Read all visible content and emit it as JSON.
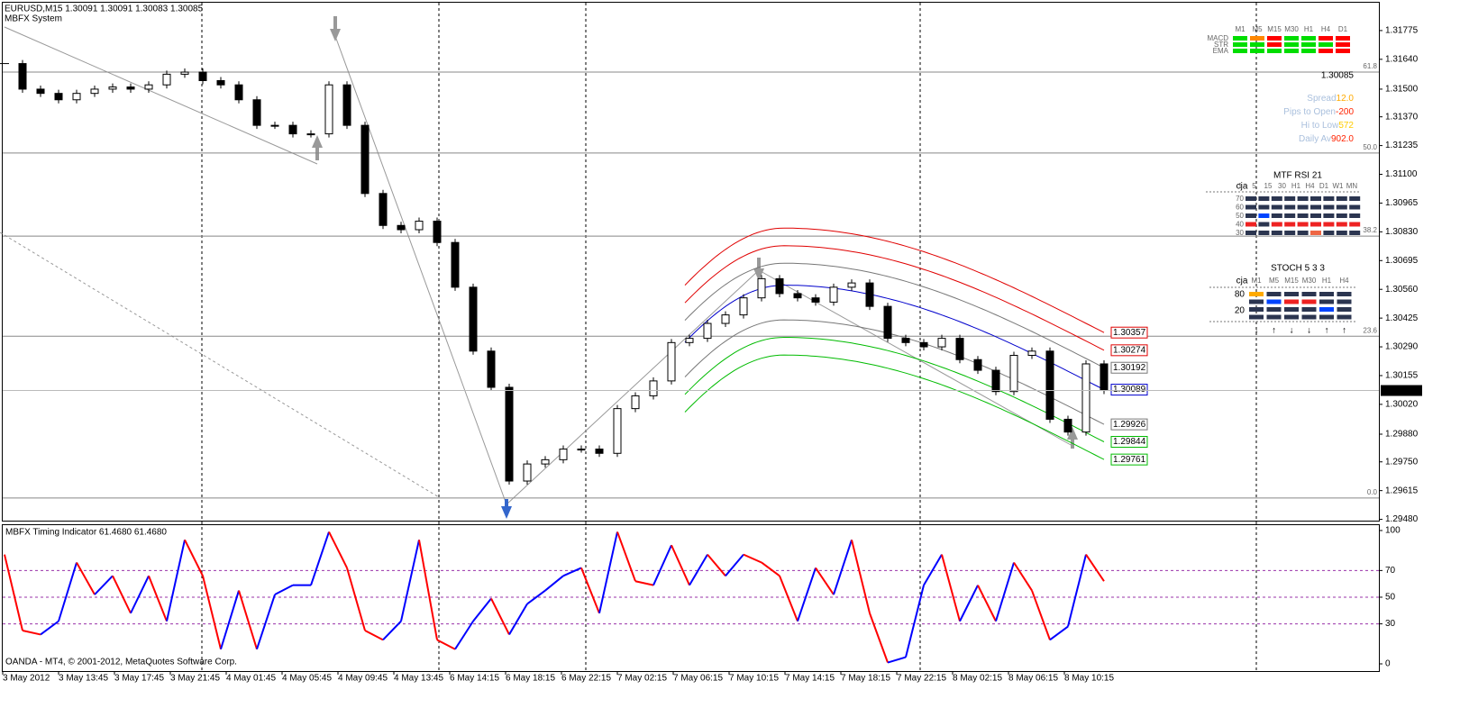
{
  "header": {
    "symbol": "EURUSD,M15  1.30091 1.30091 1.30083 1.30085",
    "system": "MBFX System",
    "copyright": "OANDA - MT4, © 2001-2012, MetaQuotes Software Corp."
  },
  "time_axis": [
    "3 May 2012",
    "3 May 13:45",
    "3 May 17:45",
    "3 May 21:45",
    "4 May 01:45",
    "4 May 05:45",
    "4 May 09:45",
    "4 May 13:45",
    "6 May 14:15",
    "6 May 18:15",
    "6 May 22:15",
    "7 May 02:15",
    "7 May 06:15",
    "7 May 10:15",
    "7 May 14:15",
    "7 May 18:15",
    "7 May 22:15",
    "8 May 02:15",
    "8 May 06:15",
    "8 May 10:15"
  ],
  "chart_data": [
    {
      "type": "candlestick",
      "close": [
        1.3162,
        1.315,
        1.3148,
        1.3145,
        1.3148,
        1.315,
        1.3151,
        1.315,
        1.3152,
        1.3157,
        1.3158,
        1.3154,
        1.3152,
        1.3145,
        1.3133,
        1.3133,
        1.3129,
        1.3129,
        1.3152,
        1.3133,
        1.3101,
        1.3086,
        1.3084,
        1.3088,
        1.3078,
        1.3057,
        1.3027,
        1.301,
        1.2966,
        1.2974,
        1.2976,
        1.2981,
        1.2981,
        1.2979,
        1.3,
        1.3006,
        1.3013,
        1.3031,
        1.3033,
        1.304,
        1.3044,
        1.3052,
        1.3061,
        1.3054,
        1.3052,
        1.305,
        1.3057,
        1.3059,
        1.3048,
        1.3033,
        1.3031,
        1.3029,
        1.3033,
        1.3023,
        1.3018,
        1.3008,
        1.3025,
        1.3027,
        1.2995,
        1.2989,
        1.3021,
        1.30085
      ],
      "up_color": "#ffffff",
      "down_color": "#000000",
      "ylim": [
        1.29474,
        1.3191
      ],
      "yticks": [
        1.31775,
        {
          "value": 1.3164,
          "label": "1.31640"
        },
        {
          "value": 1.315,
          "label": "1.31500"
        },
        {
          "value": 1.3137,
          "label": "1.31370"
        },
        1.31235,
        {
          "value": 1.311,
          "label": "1.31100"
        },
        1.30965,
        {
          "value": 1.3083,
          "label": "1.30830"
        },
        1.30695,
        {
          "value": 1.3056,
          "label": "1.30560"
        },
        1.30425,
        {
          "value": 1.3029,
          "label": "1.30290"
        },
        1.30155,
        {
          "value": 1.3002,
          "label": "1.30020"
        },
        {
          "value": 1.2988,
          "label": "1.29880"
        },
        {
          "value": 1.2975,
          "label": "1.29750"
        },
        1.29615,
        {
          "value": 1.2948,
          "label": "1.29480"
        }
      ],
      "last_price": 1.30085,
      "levels": [
        {
          "value": 1.3158,
          "label": "61.8"
        },
        {
          "value": 1.312,
          "label": "50.0"
        },
        {
          "value": 1.3081,
          "label": "38.2"
        },
        {
          "value": 1.3034,
          "label": "23.6"
        },
        {
          "value": 1.2958,
          "label": "0.0"
        }
      ],
      "bands": [
        1.30357,
        1.30274,
        1.30192,
        1.30089,
        1.29926,
        1.29844,
        1.29761
      ],
      "band_colors": [
        "#e00000",
        "#e00000",
        "#777777",
        "#0000cc",
        "#777777",
        "#00bb00",
        "#00bb00"
      ]
    },
    {
      "type": "line",
      "title": "MBFX Timing Indicator 61.4680 61.4680",
      "values": [
        82,
        25,
        22,
        32,
        76,
        52,
        66,
        38,
        66,
        32,
        93,
        66,
        11,
        55,
        11,
        52,
        59,
        59,
        99,
        72,
        25,
        18,
        32,
        93,
        18,
        11,
        32,
        49,
        22,
        45,
        55,
        66,
        72,
        38,
        99,
        62,
        59,
        89,
        59,
        82,
        66,
        82,
        76,
        66,
        32,
        72,
        52,
        93,
        38,
        1,
        5,
        59,
        82,
        32,
        59,
        32,
        76,
        55,
        18,
        28,
        82,
        62
      ],
      "up_color": "#0000ff",
      "down_color": "#ff0000",
      "ylim": [
        -5.4,
        104.7
      ],
      "yticks": [
        100,
        70,
        50,
        30,
        0
      ],
      "levels": [
        70,
        50,
        30
      ],
      "level_color": "#9933aa"
    }
  ],
  "panel": {
    "timeframes": [
      "M1",
      "M5",
      "M15",
      "M30",
      "H1",
      "H4",
      "D1"
    ],
    "rows": [
      "MACD",
      "STR",
      "EMA"
    ],
    "cells": [
      [
        "#00dd00",
        "#ff8800",
        "#ff0000",
        "#00dd00",
        "#00dd00",
        "#ff0000",
        "#ff0000"
      ],
      [
        "#00dd00",
        "#00dd00",
        "#ff0000",
        "#00dd00",
        "#00dd00",
        "#00dd00",
        "#ff0000"
      ],
      [
        "#00dd00",
        "#00dd00",
        "#00dd00",
        "#00dd00",
        "#00dd00",
        "#ff0000",
        "#ff0000"
      ]
    ],
    "price": "1.30085",
    "stats": [
      {
        "label": "Spread",
        "value": "12.0",
        "color": "#ffaa00"
      },
      {
        "label": "Pips to Open",
        "value": "-200",
        "color": "#ff2200"
      },
      {
        "label": "Hi to Low",
        "value": "572",
        "color": "#ffcc00"
      },
      {
        "label": "Daily Av",
        "value": "902.0",
        "color": "#ff2200"
      }
    ]
  },
  "rsi": {
    "title": "MTF RSI  21",
    "author": "cja",
    "columns": [
      "1",
      "5",
      "15",
      "30",
      "H1",
      "H4",
      "D1",
      "W1",
      "MN"
    ],
    "rows": [
      "70",
      "60",
      "50",
      "40",
      "30"
    ],
    "cells": [
      [
        "#2b3550",
        "#2b3550",
        "#2b3550",
        "#2b3550",
        "#2b3550",
        "#2b3550",
        "#2b3550",
        "#2b3550",
        "#2b3550"
      ],
      [
        "#2b3550",
        "#2b3550",
        "#2b3550",
        "#2b3550",
        "#2b3550",
        "#2b3550",
        "#2b3550",
        "#2b3550",
        "#2b3550"
      ],
      [
        "#2b3550",
        "#0044ff",
        "#2b3550",
        "#2b3550",
        "#2b3550",
        "#2b3550",
        "#2b3550",
        "#2b3550",
        "#2b3550"
      ],
      [
        "#ee2222",
        "#2b3550",
        "#ee2222",
        "#ee2222",
        "#ee2222",
        "#ee2222",
        "#ee2222",
        "#ee2222",
        "#ee2222"
      ],
      [
        "#2b3550",
        "#2b3550",
        "#2b3550",
        "#2b3550",
        "#2b3550",
        "#ee6644",
        "#2b3550",
        "#2b3550",
        "#2b3550"
      ]
    ]
  },
  "stoch": {
    "title": "STOCH  5 3 3",
    "author": "cja",
    "columns": [
      "M1",
      "M5",
      "M15",
      "M30",
      "H1",
      "H4"
    ],
    "rows": [
      "80",
      "",
      "20",
      ""
    ],
    "cells": [
      [
        "#ffaa00",
        "#2b3550",
        "#2b3550",
        "#2b3550",
        "#2b3550",
        "#2b3550"
      ],
      [
        "#2b3550",
        "#0044ff",
        "#ee2222",
        "#ee2222",
        "#2b3550",
        "#2b3550"
      ],
      [
        "#2b3550",
        "#2b3550",
        "#2b3550",
        "#2b3550",
        "#0044ff",
        "#2b3550"
      ],
      [
        "#2b3550",
        "#2b3550",
        "#2b3550",
        "#2b3550",
        "#2b3550",
        "#2b3550"
      ]
    ],
    "arrows": [
      "↓",
      "↑",
      "↓",
      "↓",
      "↑",
      "↑"
    ],
    "arrow_colors": [
      "#ee0000",
      "#0044ff",
      "#ee0000",
      "#ee0000",
      "#0044ff",
      "#0044ff"
    ]
  }
}
